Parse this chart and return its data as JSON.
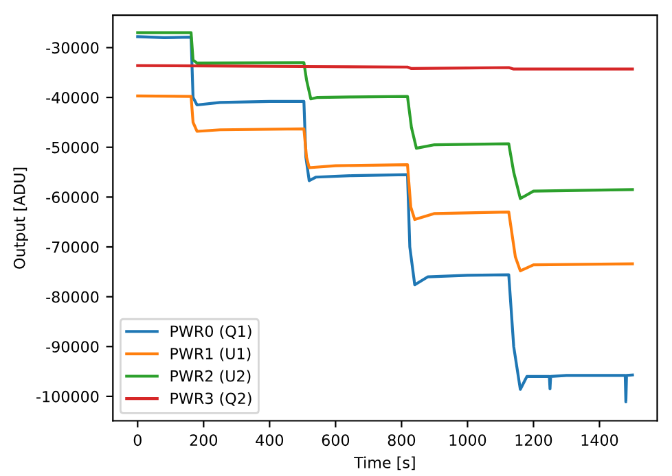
{
  "chart_data": {
    "type": "line",
    "xlabel": "Time [s]",
    "ylabel": "Output [ADU]",
    "xlim": [
      -75,
      1575
    ],
    "ylim": [
      -104900,
      -23500
    ],
    "xticks": [
      0,
      200,
      400,
      600,
      800,
      1000,
      1200,
      1400
    ],
    "yticks": [
      -100000,
      -90000,
      -80000,
      -70000,
      -60000,
      -50000,
      -40000,
      -30000
    ],
    "legend": "lower left",
    "grid": false,
    "marker": "none",
    "line_style": "solid",
    "series": [
      {
        "name": "PWR0 (Q1)",
        "color": "#1f77b4",
        "x": [
          0,
          80,
          162,
          168,
          180,
          250,
          400,
          504,
          510,
          520,
          540,
          650,
          818,
          825,
          840,
          880,
          1000,
          1125,
          1140,
          1160,
          1180,
          1248,
          1250,
          1252,
          1300,
          1478,
          1480,
          1482,
          1500
        ],
        "values": [
          -27800,
          -28000,
          -27900,
          -40000,
          -41500,
          -41000,
          -40800,
          -40800,
          -52000,
          -56700,
          -56000,
          -55700,
          -55500,
          -70000,
          -77600,
          -76000,
          -75700,
          -75600,
          -90000,
          -98600,
          -96000,
          -96000,
          -98500,
          -96000,
          -95800,
          -95800,
          -101100,
          -95800,
          -95700
        ]
      },
      {
        "name": "PWR1 (U1)",
        "color": "#ff7f0e",
        "x": [
          0,
          162,
          168,
          180,
          250,
          504,
          512,
          520,
          600,
          818,
          828,
          840,
          900,
          1125,
          1145,
          1160,
          1200,
          1500
        ],
        "values": [
          -39700,
          -39800,
          -45000,
          -46800,
          -46500,
          -46300,
          -52000,
          -54100,
          -53700,
          -53500,
          -62000,
          -64500,
          -63300,
          -63000,
          -72000,
          -74800,
          -73600,
          -73400
        ]
      },
      {
        "name": "PWR2 (U2)",
        "color": "#2ca02c",
        "x": [
          0,
          162,
          168,
          180,
          504,
          512,
          525,
          545,
          650,
          818,
          830,
          845,
          900,
          1125,
          1140,
          1160,
          1200,
          1500
        ],
        "values": [
          -27000,
          -27000,
          -32500,
          -33100,
          -33000,
          -36500,
          -40300,
          -40000,
          -39900,
          -39800,
          -46000,
          -50200,
          -49500,
          -49300,
          -55000,
          -60300,
          -58800,
          -58500
        ]
      },
      {
        "name": "PWR3 (Q2)",
        "color": "#d62728",
        "x": [
          0,
          300,
          500,
          818,
          830,
          1000,
          1125,
          1140,
          1300,
          1500
        ],
        "values": [
          -33600,
          -33700,
          -33800,
          -33900,
          -34200,
          -34100,
          -34000,
          -34300,
          -34300,
          -34300
        ]
      }
    ]
  }
}
